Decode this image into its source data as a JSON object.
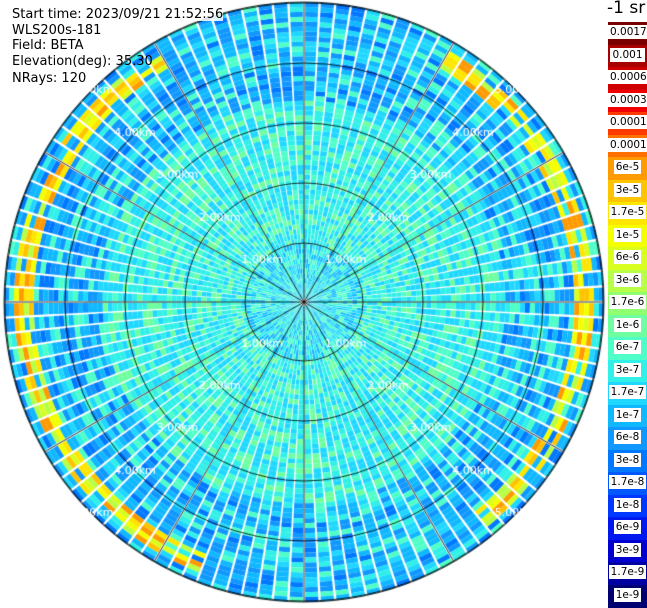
{
  "header": {
    "start_time": "Start time: 2023/09/21 21:52:56",
    "instrument": "WLS200s-181",
    "field": "Field: BETA",
    "elevation": "Elevation(deg): 35.30",
    "nrays": "NRays: 120"
  },
  "colorbar": {
    "unit_label": "-1 sr",
    "labels": [
      "0.0017",
      "0.001",
      "0.0006",
      "0.0003",
      "0.00017",
      "0.0001",
      "6e-5",
      "3e-5",
      "1.7e-5",
      "1e-5",
      "6e-6",
      "3e-6",
      "1.7e-6",
      "1e-6",
      "6e-7",
      "3e-7",
      "1.7e-7",
      "1e-7",
      "6e-8",
      "3e-8",
      "1.7e-8",
      "1e-8",
      "6e-9",
      "3e-9",
      "1.7e-9",
      "1e-9"
    ],
    "colors": [
      "#7a0000",
      "#a80000",
      "#d00000",
      "#f00000",
      "#ff3a00",
      "#ff7000",
      "#ff9a00",
      "#ffc400",
      "#ffe600",
      "#f4ff00",
      "#d8ff20",
      "#b8ff48",
      "#90ff70",
      "#70ffa0",
      "#50ffc8",
      "#30f0e8",
      "#20d8ff",
      "#10b8ff",
      "#1098ff",
      "#0078ff",
      "#0058ff",
      "#0038ff",
      "#0018f0",
      "#0000d0",
      "#0000a0",
      "#000070"
    ]
  },
  "map": {
    "range_ring_labels": [
      "1.00km",
      "2.00km",
      "3.00km",
      "4.00km",
      "5.00km"
    ],
    "ray_count": 120,
    "scheme": {
      "background": "#ffffff",
      "ring_color": "#000000",
      "spoke_color": "#000000",
      "label_color": "#ffffff"
    }
  }
}
